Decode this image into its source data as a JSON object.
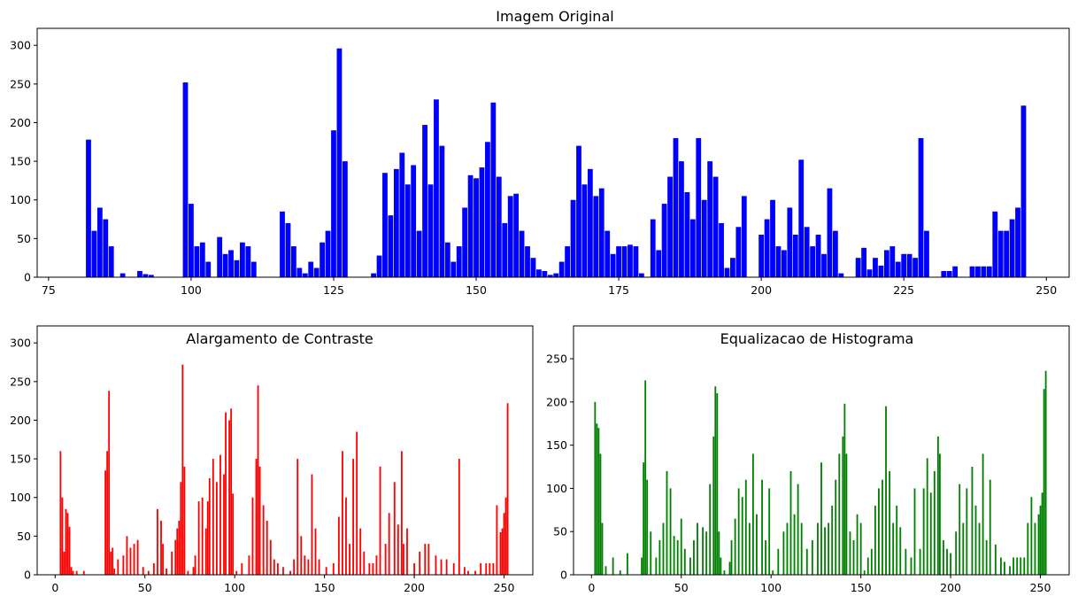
{
  "chart_data": [
    {
      "type": "bar",
      "title": "Imagem Original",
      "xlabel": "",
      "ylabel": "",
      "color": "#0000ff",
      "xlim": [
        73,
        254
      ],
      "ylim": [
        0,
        322
      ],
      "xticks": [
        75,
        100,
        125,
        150,
        175,
        200,
        225,
        250
      ],
      "yticks": [
        0,
        50,
        100,
        150,
        200,
        250,
        300
      ],
      "x": [
        82,
        83,
        84,
        85,
        86,
        88,
        91,
        92,
        93,
        99,
        100,
        101,
        102,
        103,
        105,
        106,
        107,
        108,
        109,
        110,
        111,
        116,
        117,
        118,
        119,
        120,
        121,
        122,
        123,
        124,
        125,
        126,
        127,
        132,
        133,
        134,
        135,
        136,
        137,
        138,
        139,
        140,
        141,
        142,
        143,
        144,
        145,
        146,
        147,
        148,
        149,
        150,
        151,
        152,
        153,
        154,
        155,
        156,
        157,
        158,
        159,
        160,
        161,
        162,
        163,
        164,
        165,
        166,
        167,
        168,
        169,
        170,
        171,
        172,
        173,
        174,
        175,
        176,
        177,
        178,
        179,
        181,
        182,
        183,
        184,
        185,
        186,
        187,
        188,
        189,
        190,
        191,
        192,
        193,
        194,
        195,
        196,
        197,
        200,
        201,
        202,
        203,
        204,
        205,
        206,
        207,
        208,
        209,
        210,
        211,
        212,
        213,
        214,
        217,
        218,
        219,
        220,
        221,
        222,
        223,
        224,
        225,
        226,
        227,
        228,
        229,
        232,
        233,
        234,
        237,
        238,
        239,
        240,
        241,
        242,
        243,
        244,
        245,
        246
      ],
      "values": [
        178,
        60,
        90,
        75,
        40,
        5,
        8,
        4,
        3,
        252,
        95,
        40,
        45,
        20,
        52,
        30,
        35,
        22,
        45,
        40,
        20,
        85,
        70,
        40,
        12,
        5,
        20,
        12,
        45,
        60,
        190,
        296,
        150,
        5,
        28,
        135,
        80,
        140,
        161,
        120,
        145,
        60,
        197,
        120,
        230,
        170,
        45,
        20,
        40,
        90,
        132,
        128,
        142,
        175,
        226,
        130,
        70,
        105,
        108,
        60,
        40,
        25,
        10,
        8,
        3,
        5,
        20,
        40,
        100,
        170,
        120,
        140,
        105,
        115,
        60,
        30,
        40,
        40,
        42,
        40,
        5,
        75,
        35,
        95,
        130,
        180,
        150,
        110,
        75,
        180,
        100,
        150,
        130,
        70,
        12,
        25,
        65,
        105,
        55,
        75,
        100,
        40,
        35,
        90,
        55,
        152,
        65,
        40,
        55,
        30,
        115,
        60,
        5,
        25,
        38,
        10,
        25,
        15,
        35,
        40,
        20,
        30,
        30,
        25,
        180,
        60,
        8,
        8,
        14,
        14,
        14,
        14,
        14,
        85,
        60,
        60,
        75,
        90,
        222
      ]
    },
    {
      "type": "bar",
      "title": "Alargamento de Contraste",
      "xlabel": "",
      "ylabel": "",
      "color": "#ff0000",
      "xlim": [
        -10,
        266
      ],
      "ylim": [
        0,
        322
      ],
      "xticks": [
        0,
        50,
        100,
        150,
        200,
        250
      ],
      "yticks": [
        0,
        50,
        100,
        150,
        200,
        250,
        300
      ],
      "x": [
        3,
        4,
        5,
        6,
        7,
        8,
        9,
        10,
        12,
        16,
        28,
        29,
        30,
        31,
        32,
        33,
        35,
        38,
        40,
        42,
        44,
        46,
        49,
        52,
        55,
        57,
        59,
        60,
        62,
        65,
        67,
        68,
        69,
        70,
        71,
        72,
        74,
        77,
        78,
        80,
        82,
        84,
        85,
        86,
        88,
        90,
        92,
        94,
        95,
        97,
        98,
        99,
        101,
        104,
        108,
        110,
        112,
        113,
        114,
        116,
        118,
        120,
        122,
        124,
        127,
        131,
        133,
        135,
        137,
        139,
        141,
        143,
        145,
        147,
        151,
        155,
        158,
        160,
        162,
        164,
        166,
        168,
        170,
        172,
        175,
        177,
        179,
        181,
        184,
        186,
        189,
        191,
        193,
        194,
        196,
        200,
        203,
        206,
        208,
        212,
        215,
        218,
        222,
        225,
        228,
        230,
        234,
        237,
        240,
        242,
        244,
        246,
        248,
        249,
        250,
        251,
        252
      ],
      "values": [
        160,
        100,
        30,
        85,
        80,
        62,
        10,
        5,
        5,
        5,
        135,
        160,
        238,
        30,
        35,
        8,
        20,
        25,
        50,
        35,
        40,
        45,
        10,
        5,
        15,
        85,
        70,
        40,
        8,
        30,
        45,
        60,
        70,
        120,
        272,
        140,
        5,
        10,
        25,
        95,
        100,
        60,
        95,
        125,
        150,
        120,
        155,
        130,
        210,
        200,
        215,
        105,
        5,
        15,
        25,
        100,
        150,
        245,
        140,
        90,
        70,
        45,
        20,
        15,
        10,
        5,
        20,
        150,
        50,
        25,
        20,
        130,
        60,
        20,
        10,
        15,
        75,
        160,
        100,
        40,
        150,
        185,
        60,
        30,
        15,
        15,
        25,
        140,
        40,
        80,
        120,
        65,
        160,
        40,
        60,
        15,
        30,
        40,
        40,
        25,
        20,
        20,
        15,
        150,
        10,
        5,
        5,
        15,
        15,
        15,
        15,
        90,
        55,
        60,
        80,
        100,
        222
      ]
    },
    {
      "type": "bar",
      "title": "Equalizacao de Histograma",
      "xlabel": "",
      "ylabel": "",
      "color": "#008000",
      "xlim": [
        -10,
        266
      ],
      "ylim": [
        0,
        288
      ],
      "xticks": [
        0,
        50,
        100,
        150,
        200,
        250
      ],
      "yticks": [
        0,
        50,
        100,
        150,
        200,
        250
      ],
      "x": [
        2,
        3,
        4,
        5,
        6,
        8,
        12,
        16,
        20,
        28,
        29,
        30,
        31,
        33,
        36,
        38,
        40,
        42,
        44,
        46,
        48,
        50,
        52,
        55,
        57,
        59,
        62,
        64,
        66,
        68,
        69,
        70,
        71,
        72,
        74,
        77,
        78,
        80,
        82,
        84,
        86,
        88,
        90,
        92,
        95,
        97,
        99,
        101,
        104,
        107,
        109,
        111,
        113,
        115,
        117,
        120,
        123,
        126,
        128,
        130,
        132,
        134,
        136,
        138,
        140,
        141,
        142,
        144,
        146,
        148,
        150,
        152,
        154,
        156,
        158,
        160,
        162,
        164,
        166,
        168,
        170,
        172,
        175,
        178,
        180,
        183,
        185,
        187,
        189,
        191,
        193,
        194,
        196,
        198,
        200,
        203,
        205,
        207,
        209,
        212,
        214,
        216,
        218,
        220,
        222,
        225,
        228,
        230,
        233,
        235,
        237,
        239,
        241,
        243,
        245,
        247,
        249,
        250,
        251,
        252,
        253
      ],
      "values": [
        200,
        175,
        170,
        140,
        60,
        10,
        20,
        5,
        25,
        20,
        130,
        225,
        110,
        50,
        20,
        40,
        60,
        120,
        100,
        45,
        40,
        65,
        30,
        20,
        40,
        60,
        55,
        50,
        105,
        160,
        218,
        210,
        50,
        20,
        5,
        15,
        40,
        65,
        100,
        90,
        110,
        60,
        140,
        70,
        110,
        40,
        100,
        5,
        30,
        50,
        60,
        120,
        70,
        105,
        60,
        30,
        40,
        60,
        130,
        55,
        60,
        80,
        110,
        140,
        160,
        198,
        140,
        50,
        40,
        70,
        60,
        5,
        20,
        30,
        80,
        100,
        110,
        195,
        120,
        60,
        80,
        55,
        30,
        20,
        100,
        30,
        100,
        135,
        95,
        120,
        160,
        140,
        40,
        30,
        25,
        50,
        105,
        60,
        100,
        125,
        80,
        60,
        140,
        40,
        110,
        35,
        20,
        15,
        10,
        20,
        20,
        20,
        20,
        60,
        90,
        60,
        70,
        80,
        95,
        215,
        236
      ]
    }
  ]
}
